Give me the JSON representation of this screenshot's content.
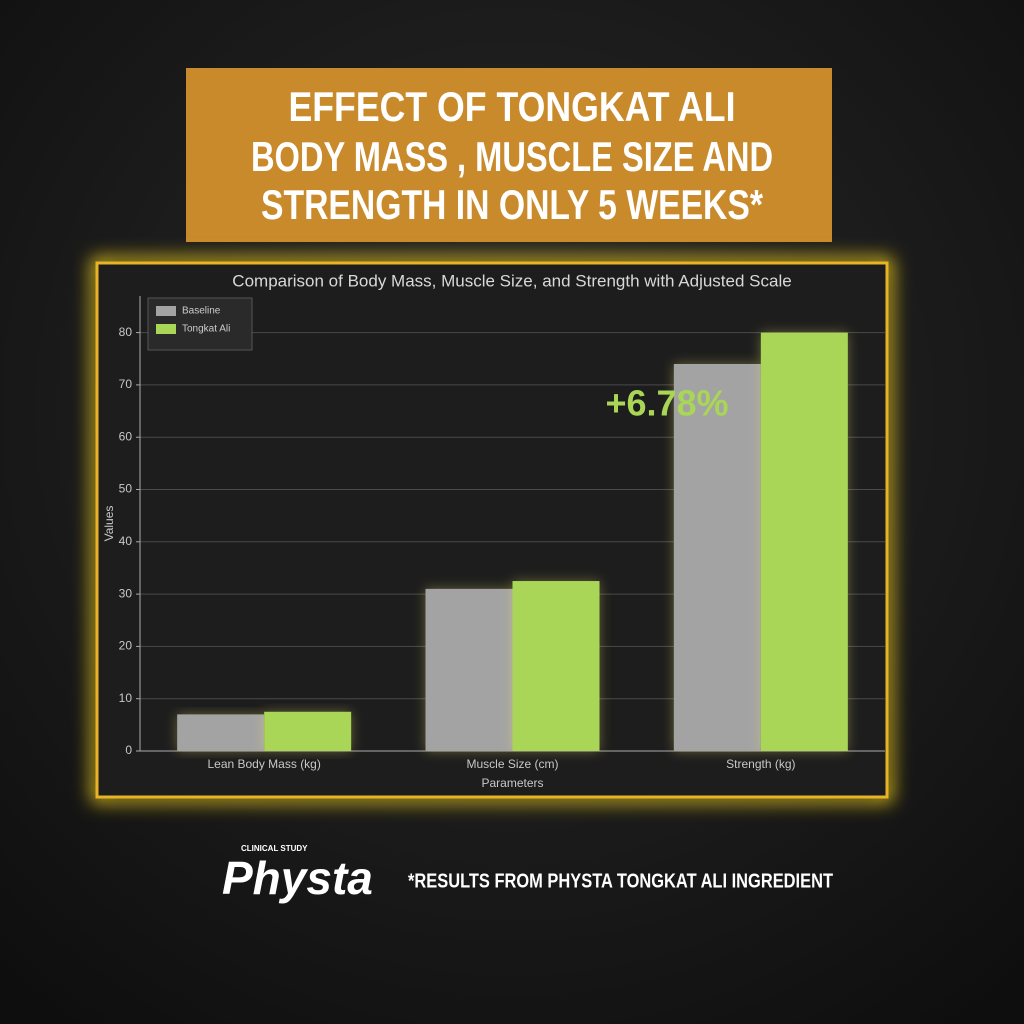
{
  "banner": {
    "lines": [
      "EFFECT OF TONGKAT ALI",
      "BODY MASS , MUSCLE SIZE AND",
      "STRENGTH IN ONLY 5 WEEKS*"
    ]
  },
  "chart_data": {
    "type": "bar",
    "title": "Comparison of Body Mass, Muscle Size, and Strength with Adjusted Scale",
    "x_label": "Parameters",
    "y_label": "Values",
    "categories": [
      "Lean Body Mass (kg)",
      "Muscle Size (cm)",
      "Strength (kg)"
    ],
    "series": [
      {
        "name": "Baseline",
        "color": "#a3a3a3",
        "values": [
          7,
          31,
          74
        ]
      },
      {
        "name": "Tongkat Ali",
        "color": "#a9d656",
        "values": [
          7.5,
          32.5,
          80
        ]
      }
    ],
    "ylim": [
      0,
      87
    ],
    "yticks": [
      0,
      10,
      20,
      30,
      40,
      50,
      60,
      70,
      80
    ],
    "grid": true,
    "legend": "upper left",
    "annotation": "+6.78%"
  },
  "footer": {
    "badge": "CLINICAL STUDY",
    "logo": "Physta",
    "note": "*RESULTS FROM PHYSTA TONGKAT ALI INGREDIENT"
  }
}
